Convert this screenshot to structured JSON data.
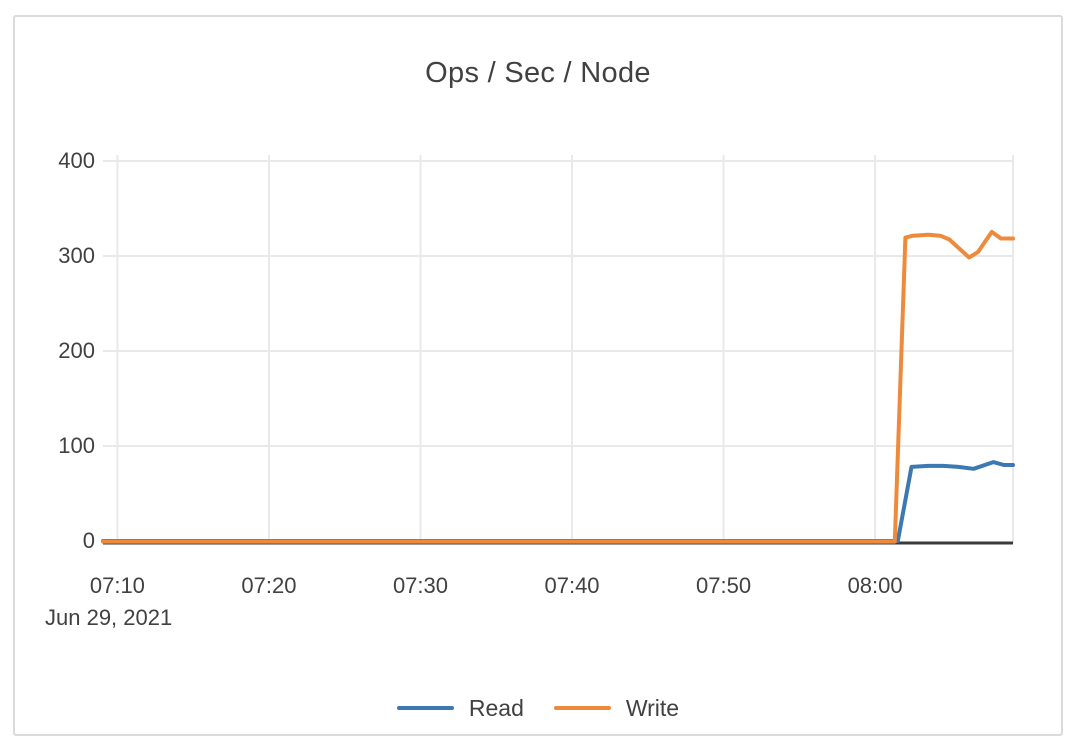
{
  "chart_data": {
    "type": "line",
    "title": "Ops / Sec / Node",
    "x_axis": {
      "type": "time",
      "unit": "minutes_after_07:00",
      "date_label": "Jun 29, 2021",
      "ticks": [
        {
          "label": "07:10",
          "minutes": 10
        },
        {
          "label": "07:20",
          "minutes": 20
        },
        {
          "label": "07:30",
          "minutes": 30
        },
        {
          "label": "07:40",
          "minutes": 40
        },
        {
          "label": "07:50",
          "minutes": 50
        },
        {
          "label": "08:00",
          "minutes": 60
        }
      ],
      "range_minutes": [
        9.05,
        69.1
      ]
    },
    "y_axis": {
      "ticks": [
        {
          "label": "0",
          "value": 0
        },
        {
          "label": "100",
          "value": 100
        },
        {
          "label": "200",
          "value": 200
        },
        {
          "label": "300",
          "value": 300
        },
        {
          "label": "400",
          "value": 400
        }
      ],
      "range": [
        0,
        400
      ]
    },
    "series": [
      {
        "name": "Read",
        "color": "#3C78B1",
        "points": [
          [
            9.05,
            0
          ],
          [
            20,
            0
          ],
          [
            30,
            0
          ],
          [
            40,
            0
          ],
          [
            50,
            0
          ],
          [
            60,
            0
          ],
          [
            61.5,
            0
          ],
          [
            62.4,
            78
          ],
          [
            63.5,
            79
          ],
          [
            64.5,
            79
          ],
          [
            65.5,
            78
          ],
          [
            66.5,
            76
          ],
          [
            67.8,
            83
          ],
          [
            68.5,
            80
          ],
          [
            69.1,
            80
          ]
        ]
      },
      {
        "name": "Write",
        "color": "#EE8A3C",
        "points": [
          [
            9.05,
            0
          ],
          [
            20,
            0
          ],
          [
            30,
            0
          ],
          [
            40,
            0
          ],
          [
            50,
            0
          ],
          [
            60,
            0
          ],
          [
            61.3,
            0
          ],
          [
            62.0,
            320
          ],
          [
            62.5,
            322
          ],
          [
            63.5,
            323
          ],
          [
            64.3,
            322
          ],
          [
            64.9,
            318
          ],
          [
            66.2,
            299
          ],
          [
            66.8,
            305
          ],
          [
            67.7,
            326
          ],
          [
            68.3,
            319
          ],
          [
            69.1,
            319
          ]
        ]
      }
    ],
    "layout_hints": {
      "legend_position": "bottom-center",
      "grid": true,
      "background": "#FFFFFF"
    }
  },
  "colors": {
    "text": "#414141",
    "gridline": "#E9E9E9",
    "axis_line": "#3B3B3B",
    "card_border": "#DBDBDB",
    "read": "#3C78B1",
    "write": "#EE8A3C"
  }
}
